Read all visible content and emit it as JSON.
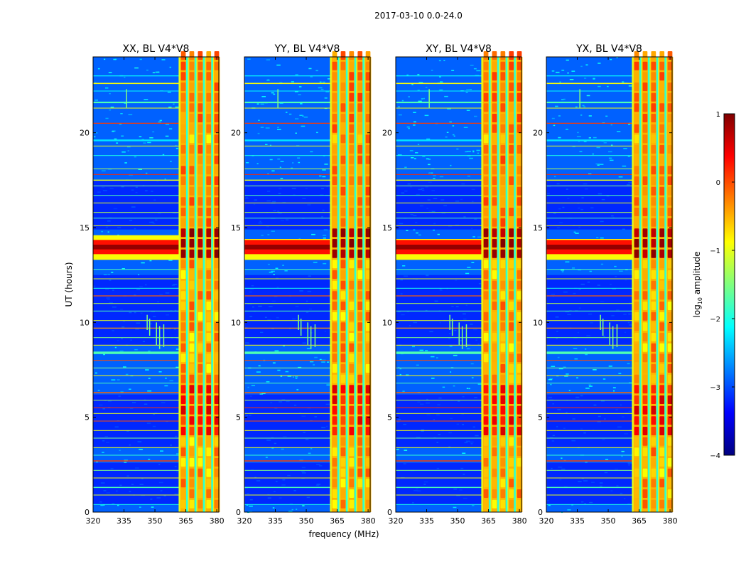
{
  "figure": {
    "suptitle": "2017-03-10 0.0-24.0",
    "xlabel": "frequency (MHz)",
    "ylabel": "UT (hours)"
  },
  "colorbar": {
    "label_prefix": "log",
    "label_sub": "10",
    "label_suffix": " amplitude",
    "range": [
      -4,
      1
    ],
    "ticks": [
      1,
      0,
      -1,
      -2,
      -3,
      -4
    ],
    "tick_labels": [
      "1",
      "0",
      "−1",
      "−2",
      "−3",
      "−4"
    ],
    "colormap": "jet",
    "stops": [
      "#00007f",
      "#0000ff",
      "#007fff",
      "#00ffff",
      "#7fff7f",
      "#ffff00",
      "#ff7f00",
      "#ff0000",
      "#7f0000"
    ]
  },
  "chart_data": [
    {
      "type": "heatmap",
      "title": "XX, BL V4*V8",
      "xlim": [
        320,
        381
      ],
      "ylim": [
        0,
        24
      ],
      "xticks": [
        320,
        335,
        350,
        365,
        380
      ],
      "xtick_labels": [
        "320",
        "335",
        "350",
        "365",
        "380"
      ],
      "yticks": [
        0,
        5,
        10,
        15,
        20
      ],
      "ytick_labels": [
        "0",
        "5",
        "10",
        "15",
        "20"
      ],
      "band_start_mhz": 361.5,
      "bright_time_ranges": [
        [
          13.3,
          14.6
        ],
        [
          3.6,
          6.4
        ]
      ]
    },
    {
      "type": "heatmap",
      "title": "YY, BL V4*V8",
      "xlim": [
        320,
        381
      ],
      "ylim": [
        0,
        24
      ],
      "xticks": [
        320,
        335,
        350,
        365,
        380
      ],
      "xtick_labels": [
        "320",
        "335",
        "350",
        "365",
        "380"
      ],
      "yticks": [
        0,
        5,
        10,
        15,
        20
      ],
      "ytick_labels": [
        "0",
        "5",
        "10",
        "15",
        "20"
      ],
      "band_start_mhz": 361.5,
      "bright_time_ranges": [
        [
          13.3,
          14.4
        ],
        [
          3.6,
          6.4
        ]
      ]
    },
    {
      "type": "heatmap",
      "title": "XY, BL V4*V8",
      "xlim": [
        320,
        381
      ],
      "ylim": [
        0,
        24
      ],
      "xticks": [
        320,
        335,
        350,
        365,
        380
      ],
      "xtick_labels": [
        "320",
        "335",
        "350",
        "365",
        "380"
      ],
      "yticks": [
        0,
        5,
        10,
        15,
        20
      ],
      "ytick_labels": [
        "0",
        "5",
        "10",
        "15",
        "20"
      ],
      "band_start_mhz": 361.5,
      "bright_time_ranges": [
        [
          13.3,
          14.4
        ],
        [
          3.6,
          6.4
        ]
      ]
    },
    {
      "type": "heatmap",
      "title": "YX, BL V4*V8",
      "xlim": [
        320,
        381
      ],
      "ylim": [
        0,
        24
      ],
      "xticks": [
        320,
        335,
        350,
        365,
        380
      ],
      "xtick_labels": [
        "320",
        "335",
        "350",
        "365",
        "380"
      ],
      "yticks": [
        0,
        5,
        10,
        15,
        20
      ],
      "ytick_labels": [
        "0",
        "5",
        "10",
        "15",
        "20"
      ],
      "band_start_mhz": 361.5,
      "bright_time_ranges": [
        [
          13.3,
          14.4
        ],
        [
          3.6,
          6.4
        ]
      ]
    }
  ]
}
